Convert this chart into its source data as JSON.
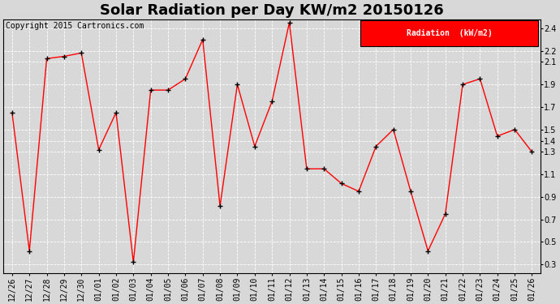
{
  "title": "Solar Radiation per Day KW/m2 20150126",
  "copyright": "Copyright 2015 Cartronics.com",
  "legend_label": "Radiation  (kW/m2)",
  "x_labels": [
    "12/26",
    "12/27",
    "12/28",
    "12/29",
    "12/30",
    "01/01",
    "01/02",
    "01/03",
    "01/04",
    "01/05",
    "01/06",
    "01/07",
    "01/08",
    "01/09",
    "01/10",
    "01/11",
    "01/12",
    "01/13",
    "01/14",
    "01/15",
    "01/16",
    "01/17",
    "01/18",
    "01/19",
    "01/20",
    "01/21",
    "01/22",
    "01/23",
    "01/24",
    "01/25",
    "01/26"
  ],
  "y_values": [
    1.65,
    0.42,
    2.13,
    2.15,
    2.18,
    1.32,
    1.65,
    0.32,
    1.85,
    1.85,
    1.95,
    2.3,
    0.82,
    1.9,
    1.35,
    1.75,
    2.45,
    1.15,
    1.15,
    1.02,
    0.95,
    1.35,
    1.5,
    0.95,
    0.42,
    0.75,
    1.9,
    1.95,
    1.44,
    1.5,
    1.3
  ],
  "line_color": "red",
  "marker_color": "black",
  "bg_color": "#d8d8d8",
  "grid_color": "white",
  "legend_bg": "red",
  "legend_text_color": "white",
  "ylim_min": 0.22,
  "ylim_max": 2.48,
  "yticks": [
    0.3,
    0.5,
    0.7,
    0.9,
    1.1,
    1.3,
    1.4,
    1.5,
    1.7,
    1.9,
    2.1,
    2.2,
    2.4
  ],
  "title_fontsize": 13,
  "axis_label_fontsize": 7,
  "copyright_fontsize": 7
}
